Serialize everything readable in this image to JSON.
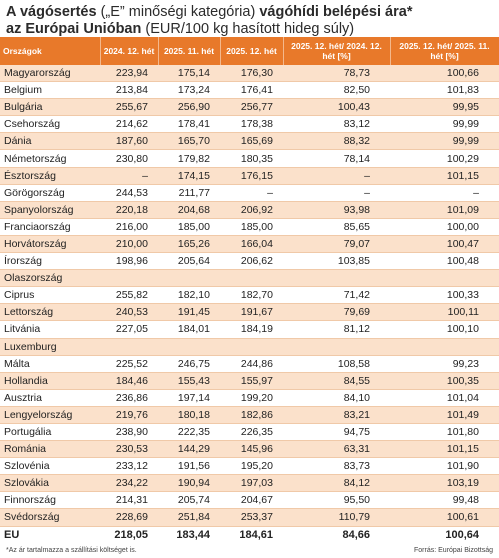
{
  "header": {
    "title_parts": [
      "A vágósertés",
      "(„E” minőségi kategória)",
      "vágóhídi belépési ára*",
      "az Európai Unióban",
      "(EUR/100 kg hasított hideg súly)"
    ]
  },
  "table": {
    "columns": [
      "Országok",
      "2024. 12. hét",
      "2025. 11. hét",
      "2025. 12. hét",
      "2025. 12. hét/ 2024. 12. hét [%]",
      "2025. 12. hét/ 2025. 11. hét [%]"
    ],
    "rows": [
      [
        "Magyarország",
        "223,94",
        "175,14",
        "176,30",
        "78,73",
        "100,66"
      ],
      [
        "Belgium",
        "213,84",
        "173,24",
        "176,41",
        "82,50",
        "101,83"
      ],
      [
        "Bulgária",
        "255,67",
        "256,90",
        "256,77",
        "100,43",
        "99,95"
      ],
      [
        "Csehország",
        "214,62",
        "178,41",
        "178,38",
        "83,12",
        "99,99"
      ],
      [
        "Dánia",
        "187,60",
        "165,70",
        "165,69",
        "88,32",
        "99,99"
      ],
      [
        "Németország",
        "230,80",
        "179,82",
        "180,35",
        "78,14",
        "100,29"
      ],
      [
        "Észtország",
        "–",
        "174,15",
        "176,15",
        "–",
        "101,15"
      ],
      [
        "Görögország",
        "244,53",
        "211,77",
        "–",
        "–",
        "–"
      ],
      [
        "Spanyolország",
        "220,18",
        "204,68",
        "206,92",
        "93,98",
        "101,09"
      ],
      [
        "Franciaország",
        "216,00",
        "185,00",
        "185,00",
        "85,65",
        "100,00"
      ],
      [
        "Horvátország",
        "210,00",
        "165,26",
        "166,04",
        "79,07",
        "100,47"
      ],
      [
        "Írország",
        "198,96",
        "205,64",
        "206,62",
        "103,85",
        "100,48"
      ],
      [
        "Olaszország"
      ],
      [
        "Ciprus",
        "255,82",
        "182,10",
        "182,70",
        "71,42",
        "100,33"
      ],
      [
        "Lettország",
        "240,53",
        "191,45",
        "191,67",
        "79,69",
        "100,11"
      ],
      [
        "Litvánia",
        "227,05",
        "184,01",
        "184,19",
        "81,12",
        "100,10"
      ],
      [
        "Luxemburg"
      ],
      [
        "Málta",
        "225,52",
        "246,75",
        "244,86",
        "108,58",
        "99,23"
      ],
      [
        "Hollandia",
        "184,46",
        "155,43",
        "155,97",
        "84,55",
        "100,35"
      ],
      [
        "Ausztria",
        "236,86",
        "197,14",
        "199,20",
        "84,10",
        "101,04"
      ],
      [
        "Lengyelország",
        "219,76",
        "180,18",
        "182,86",
        "83,21",
        "101,49"
      ],
      [
        "Portugália",
        "238,90",
        "222,35",
        "226,35",
        "94,75",
        "101,80"
      ],
      [
        "Románia",
        "230,53",
        "144,29",
        "145,96",
        "63,31",
        "101,15"
      ],
      [
        "Szlovénia",
        "233,12",
        "191,56",
        "195,20",
        "83,73",
        "101,90"
      ],
      [
        "Szlovákia",
        "234,22",
        "190,94",
        "197,03",
        "84,12",
        "103,19"
      ],
      [
        "Finnország",
        "214,31",
        "205,74",
        "204,67",
        "95,50",
        "99,48"
      ],
      [
        "Svédország",
        "228,69",
        "251,84",
        "253,37",
        "110,79",
        "100,61"
      ],
      [
        "EU",
        "218,05",
        "183,44",
        "184,61",
        "84,66",
        "100,64"
      ]
    ]
  },
  "footer": {
    "note": "*Az ár tartalmazza a szállítási költséget is.",
    "source": "Forrás: Európai Bizottság"
  }
}
